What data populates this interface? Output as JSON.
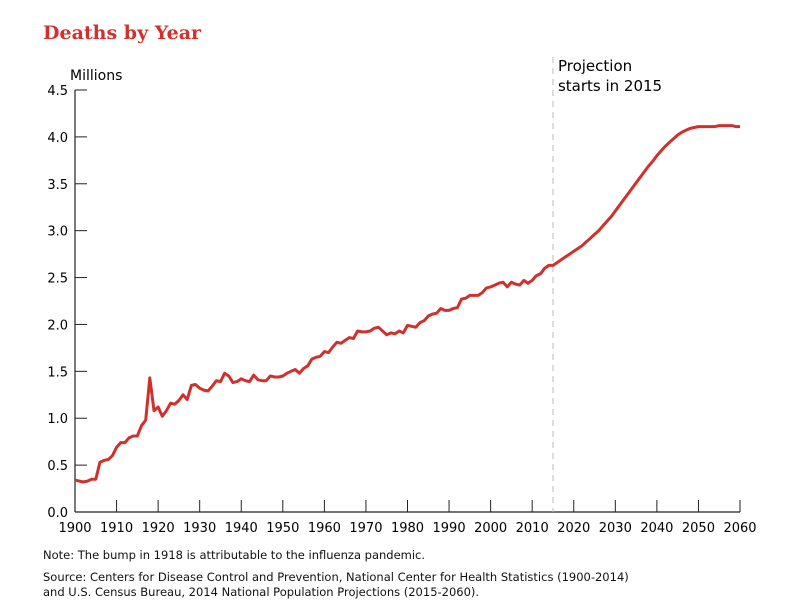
{
  "chart_data": {
    "type": "line",
    "title": "Deaths by Year",
    "ylabel": "Millions",
    "xlabel": "",
    "xlim": [
      1900,
      2060
    ],
    "ylim": [
      0,
      4.5
    ],
    "x_ticks": [
      "1900",
      "1910",
      "1920",
      "1930",
      "1940",
      "1950",
      "1960",
      "1970",
      "1980",
      "1990",
      "2000",
      "2010",
      "2020",
      "2030",
      "2040",
      "2050",
      "2060"
    ],
    "y_ticks": [
      "0.0",
      "0.5",
      "1.0",
      "1.5",
      "2.0",
      "2.5",
      "3.0",
      "3.5",
      "4.0",
      "4.5"
    ],
    "grid": false,
    "annotation": {
      "year": 2015,
      "line1": "Projection",
      "line2": "starts in 2015"
    },
    "series": [
      {
        "name": "Deaths",
        "color": "#d0312d",
        "x_start": 1900,
        "values": [
          0.34,
          0.33,
          0.32,
          0.33,
          0.35,
          0.35,
          0.53,
          0.55,
          0.56,
          0.6,
          0.69,
          0.74,
          0.74,
          0.79,
          0.81,
          0.81,
          0.92,
          0.98,
          1.43,
          1.08,
          1.12,
          1.02,
          1.08,
          1.16,
          1.15,
          1.19,
          1.25,
          1.2,
          1.35,
          1.36,
          1.32,
          1.3,
          1.29,
          1.34,
          1.4,
          1.39,
          1.48,
          1.45,
          1.38,
          1.39,
          1.42,
          1.4,
          1.39,
          1.46,
          1.41,
          1.4,
          1.4,
          1.45,
          1.44,
          1.44,
          1.45,
          1.48,
          1.5,
          1.52,
          1.48,
          1.53,
          1.56,
          1.63,
          1.65,
          1.66,
          1.71,
          1.7,
          1.76,
          1.81,
          1.8,
          1.83,
          1.86,
          1.85,
          1.93,
          1.92,
          1.92,
          1.93,
          1.96,
          1.97,
          1.93,
          1.89,
          1.91,
          1.9,
          1.93,
          1.91,
          1.99,
          1.98,
          1.97,
          2.02,
          2.04,
          2.09,
          2.11,
          2.12,
          2.17,
          2.15,
          2.15,
          2.17,
          2.18,
          2.27,
          2.28,
          2.31,
          2.31,
          2.31,
          2.34,
          2.39,
          2.4,
          2.42,
          2.44,
          2.45,
          2.4,
          2.45,
          2.43,
          2.42,
          2.47,
          2.44,
          2.47,
          2.52,
          2.54,
          2.6,
          2.63,
          2.63,
          2.66,
          2.69,
          2.72,
          2.75,
          2.78,
          2.81,
          2.84,
          2.88,
          2.92,
          2.96,
          3.0,
          3.05,
          3.1,
          3.15,
          3.21,
          3.27,
          3.33,
          3.39,
          3.45,
          3.51,
          3.57,
          3.63,
          3.69,
          3.74,
          3.8,
          3.85,
          3.9,
          3.94,
          3.98,
          4.02,
          4.05,
          4.07,
          4.09,
          4.1,
          4.11,
          4.11,
          4.11,
          4.11,
          4.11,
          4.12,
          4.12,
          4.12,
          4.12,
          4.11,
          4.11
        ]
      }
    ]
  },
  "notes": {
    "note": "Note: The bump in 1918 is attributable to the influenza pandemic.",
    "source1": "Source: Centers for Disease Control and Prevention, National Center for Health Statistics (1900-2014)",
    "source2": "and U.S. Census Bureau, 2014 National Population Projections (2015-2060)."
  }
}
